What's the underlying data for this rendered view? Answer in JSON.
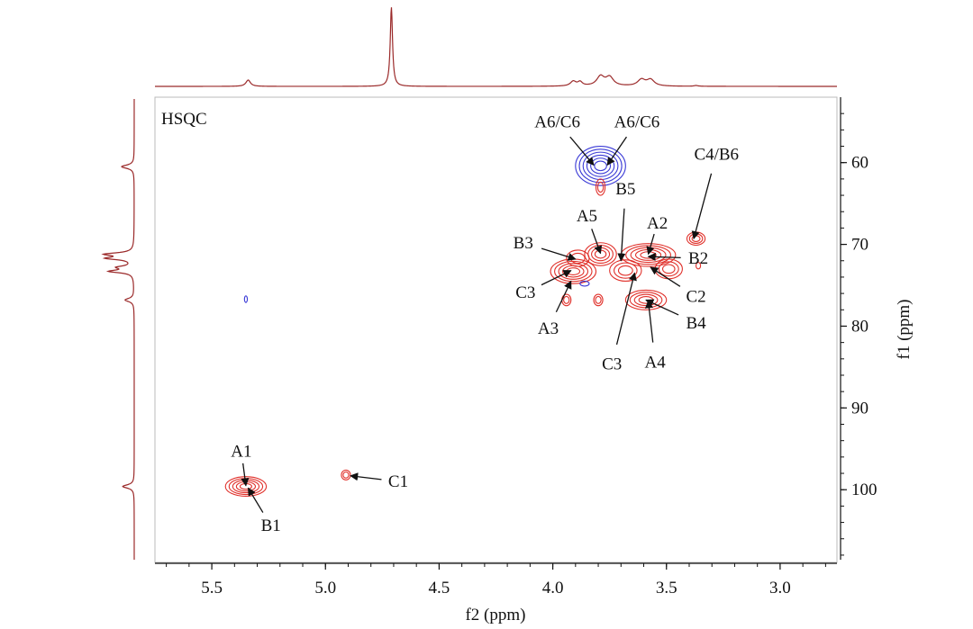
{
  "chart_data": {
    "type": "scatter",
    "subtype": "2D NMR HSQC contour plot",
    "panel_label": "HSQC",
    "xlabel": "f2 (ppm)",
    "ylabel": "f1 (ppm)",
    "xlim": [
      5.75,
      2.75
    ],
    "ylim": [
      52,
      109
    ],
    "xticks": [
      5.5,
      5.0,
      4.5,
      4.0,
      3.5,
      3.0
    ],
    "xtick_labels": [
      "5.5",
      "5.0",
      "4.5",
      "4.0",
      "3.5",
      "3.0"
    ],
    "yticks": [
      60,
      70,
      80,
      90,
      100
    ],
    "ytick_labels": [
      "60",
      "70",
      "80",
      "90",
      "100"
    ],
    "colors": {
      "positive": "#e0302a",
      "negative": "#3a3ad6",
      "projection": "#9b2a2a",
      "frame": "#bbbbbb"
    },
    "peaks": [
      {
        "f2": 3.79,
        "f1": 60.4,
        "sign": "negative",
        "rx": 0.11,
        "ry": 2.4,
        "levels": 6
      },
      {
        "f2": 3.79,
        "f1": 63.0,
        "sign": "positive",
        "rx": 0.02,
        "ry": 1.0,
        "levels": 2
      },
      {
        "f2": 3.37,
        "f1": 69.3,
        "sign": "positive",
        "rx": 0.04,
        "ry": 0.8,
        "levels": 3
      },
      {
        "f2": 3.89,
        "f1": 71.7,
        "sign": "positive",
        "rx": 0.05,
        "ry": 1.0,
        "levels": 2
      },
      {
        "f2": 3.79,
        "f1": 71.2,
        "sign": "positive",
        "rx": 0.07,
        "ry": 1.4,
        "levels": 4
      },
      {
        "f2": 3.58,
        "f1": 71.3,
        "sign": "positive",
        "rx": 0.12,
        "ry": 1.4,
        "levels": 5
      },
      {
        "f2": 3.91,
        "f1": 73.3,
        "sign": "positive",
        "rx": 0.1,
        "ry": 1.5,
        "levels": 5
      },
      {
        "f2": 3.68,
        "f1": 73.2,
        "sign": "positive",
        "rx": 0.07,
        "ry": 1.3,
        "levels": 3
      },
      {
        "f2": 3.49,
        "f1": 73.0,
        "sign": "positive",
        "rx": 0.06,
        "ry": 1.2,
        "levels": 3
      },
      {
        "f2": 3.36,
        "f1": 72.6,
        "sign": "positive",
        "rx": 0.01,
        "ry": 0.4,
        "levels": 1
      },
      {
        "f2": 3.86,
        "f1": 74.8,
        "sign": "negative",
        "rx": 0.02,
        "ry": 0.3,
        "levels": 1
      },
      {
        "f2": 3.94,
        "f1": 76.8,
        "sign": "positive",
        "rx": 0.02,
        "ry": 0.7,
        "levels": 2
      },
      {
        "f2": 3.8,
        "f1": 76.8,
        "sign": "positive",
        "rx": 0.02,
        "ry": 0.7,
        "levels": 2
      },
      {
        "f2": 3.59,
        "f1": 76.8,
        "sign": "positive",
        "rx": 0.09,
        "ry": 1.2,
        "levels": 4
      },
      {
        "f2": 5.35,
        "f1": 76.7,
        "sign": "negative",
        "rx": 0.005,
        "ry": 0.4,
        "levels": 1
      },
      {
        "f2": 5.35,
        "f1": 99.6,
        "sign": "positive",
        "rx": 0.09,
        "ry": 1.2,
        "levels": 5
      },
      {
        "f2": 4.91,
        "f1": 98.2,
        "sign": "positive",
        "rx": 0.02,
        "ry": 0.6,
        "levels": 2
      }
    ],
    "annotations": [
      {
        "label": "A6/C6",
        "text_f2": 3.98,
        "text_f1": 55.0,
        "target_f2": 3.82,
        "target_f1": 60.3
      },
      {
        "label": "A6/C6",
        "text_f2": 3.63,
        "text_f1": 55.0,
        "target_f2": 3.76,
        "target_f1": 60.3
      },
      {
        "label": "C4/B6",
        "text_f2": 3.28,
        "text_f1": 59.0,
        "target_f2": 3.38,
        "target_f1": 69.3
      },
      {
        "label": "B5",
        "text_f2": 3.68,
        "text_f1": 63.2,
        "target_f2": 3.7,
        "target_f1": 72.0
      },
      {
        "label": "A5",
        "text_f2": 3.85,
        "text_f1": 66.5,
        "target_f2": 3.79,
        "target_f1": 71.1
      },
      {
        "label": "A2",
        "text_f2": 3.54,
        "text_f1": 67.4,
        "target_f2": 3.58,
        "target_f1": 71.2
      },
      {
        "label": "B3",
        "text_f2": 4.13,
        "text_f1": 69.8,
        "target_f2": 3.9,
        "target_f1": 71.8
      },
      {
        "label": "B2",
        "text_f2": 3.36,
        "text_f1": 71.7,
        "target_f2": 3.58,
        "target_f1": 71.5
      },
      {
        "label": "C3",
        "text_f2": 4.12,
        "text_f1": 75.9,
        "target_f2": 3.92,
        "target_f1": 73.2
      },
      {
        "label": "C2",
        "text_f2": 3.37,
        "text_f1": 76.4,
        "target_f2": 3.57,
        "target_f1": 72.8
      },
      {
        "label": "A3",
        "text_f2": 4.02,
        "text_f1": 80.3,
        "target_f2": 3.92,
        "target_f1": 74.5
      },
      {
        "label": "B4",
        "text_f2": 3.37,
        "text_f1": 79.6,
        "target_f2": 3.59,
        "target_f1": 76.8
      },
      {
        "label": "C3",
        "text_f2": 3.74,
        "text_f1": 84.6,
        "target_f2": 3.64,
        "target_f1": 73.5
      },
      {
        "label": "A4",
        "text_f2": 3.55,
        "text_f1": 84.4,
        "target_f2": 3.58,
        "target_f1": 76.9
      },
      {
        "label": "A1",
        "text_f2": 5.37,
        "text_f1": 95.3,
        "target_f2": 5.35,
        "target_f1": 99.5
      },
      {
        "label": "B1",
        "text_f2": 5.24,
        "text_f1": 104.4,
        "target_f2": 5.34,
        "target_f1": 99.8
      },
      {
        "label": "C1",
        "text_f2": 4.68,
        "text_f1": 99.0,
        "target_f2": 4.89,
        "target_f1": 98.3
      }
    ],
    "f2_projection": {
      "baseline": 0.0,
      "peaks": [
        {
          "ppm": 5.34,
          "height": 0.08,
          "width": 0.012
        },
        {
          "ppm": 4.71,
          "height": 1.0,
          "width": 0.006
        },
        {
          "ppm": 3.91,
          "height": 0.06,
          "width": 0.015
        },
        {
          "ppm": 3.88,
          "height": 0.05,
          "width": 0.012
        },
        {
          "ppm": 3.79,
          "height": 0.12,
          "width": 0.02
        },
        {
          "ppm": 3.75,
          "height": 0.11,
          "width": 0.02
        },
        {
          "ppm": 3.61,
          "height": 0.08,
          "width": 0.02
        },
        {
          "ppm": 3.57,
          "height": 0.08,
          "width": 0.02
        },
        {
          "ppm": 3.37,
          "height": 0.01,
          "width": 0.01
        }
      ]
    },
    "f1_projection": {
      "peaks": [
        {
          "ppm": 60.5,
          "height": 0.35,
          "width": 0.25
        },
        {
          "ppm": 71.2,
          "height": 0.75,
          "width": 0.2
        },
        {
          "ppm": 71.7,
          "height": 0.7,
          "width": 0.2
        },
        {
          "ppm": 72.8,
          "height": 0.4,
          "width": 0.2
        },
        {
          "ppm": 73.3,
          "height": 0.65,
          "width": 0.2
        },
        {
          "ppm": 76.8,
          "height": 0.25,
          "width": 0.25
        },
        {
          "ppm": 99.6,
          "height": 0.32,
          "width": 0.25
        }
      ]
    }
  }
}
